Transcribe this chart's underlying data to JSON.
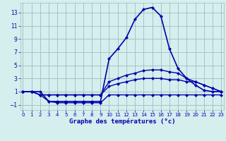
{
  "x": [
    0,
    1,
    2,
    3,
    4,
    5,
    6,
    7,
    8,
    9,
    10,
    11,
    12,
    13,
    14,
    15,
    16,
    17,
    18,
    19,
    20,
    21,
    22,
    23
  ],
  "temp_main": [
    1,
    1,
    1,
    -0.5,
    -0.5,
    -0.5,
    -0.5,
    -0.5,
    -0.5,
    -0.5,
    6,
    7.5,
    9.2,
    12,
    13.5,
    13.8,
    12.5,
    7.5,
    4.5,
    3,
    2,
    1.2,
    1,
    1
  ],
  "temp_line2": [
    1,
    1,
    0.5,
    0.5,
    0.5,
    0.5,
    0.5,
    0.5,
    0.5,
    0.5,
    2.5,
    3.0,
    3.5,
    3.8,
    4.2,
    4.3,
    4.3,
    4.0,
    3.8,
    3.0,
    2.5,
    2.0,
    1.5,
    1
  ],
  "temp_line3": [
    1,
    1,
    0.5,
    0.5,
    0.5,
    0.5,
    0.5,
    0.5,
    0.5,
    0.5,
    1.8,
    2.2,
    2.5,
    2.8,
    3.0,
    3.0,
    3.0,
    2.8,
    2.8,
    2.5,
    2.5,
    2.0,
    1.5,
    1
  ],
  "temp_line4": [
    1,
    1,
    0.5,
    -0.5,
    -0.7,
    -0.7,
    -0.7,
    -0.7,
    -0.7,
    -0.7,
    0.5,
    0.5,
    0.5,
    0.5,
    0.5,
    0.5,
    0.5,
    0.5,
    0.5,
    0.5,
    0.5,
    0.5,
    0.5,
    0.5
  ],
  "xlabel": "Graphe des températures (°c)",
  "xticks": [
    0,
    1,
    2,
    3,
    4,
    5,
    6,
    7,
    8,
    9,
    10,
    11,
    12,
    13,
    14,
    15,
    16,
    17,
    18,
    19,
    20,
    21,
    22,
    23
  ],
  "yticks": [
    -1,
    1,
    3,
    5,
    7,
    9,
    11,
    13
  ],
  "ylim": [
    -1.8,
    14.5
  ],
  "xlim": [
    -0.3,
    23.3
  ],
  "bg_color": "#d5eeee",
  "line_color": "#0000aa",
  "grid_color": "#9bbfbf",
  "tick_color": "#0000aa",
  "xlabel_color": "#0000aa",
  "marker": "D",
  "markersize": 2.5,
  "linewidth_main": 1.2,
  "linewidth_other": 1.0
}
